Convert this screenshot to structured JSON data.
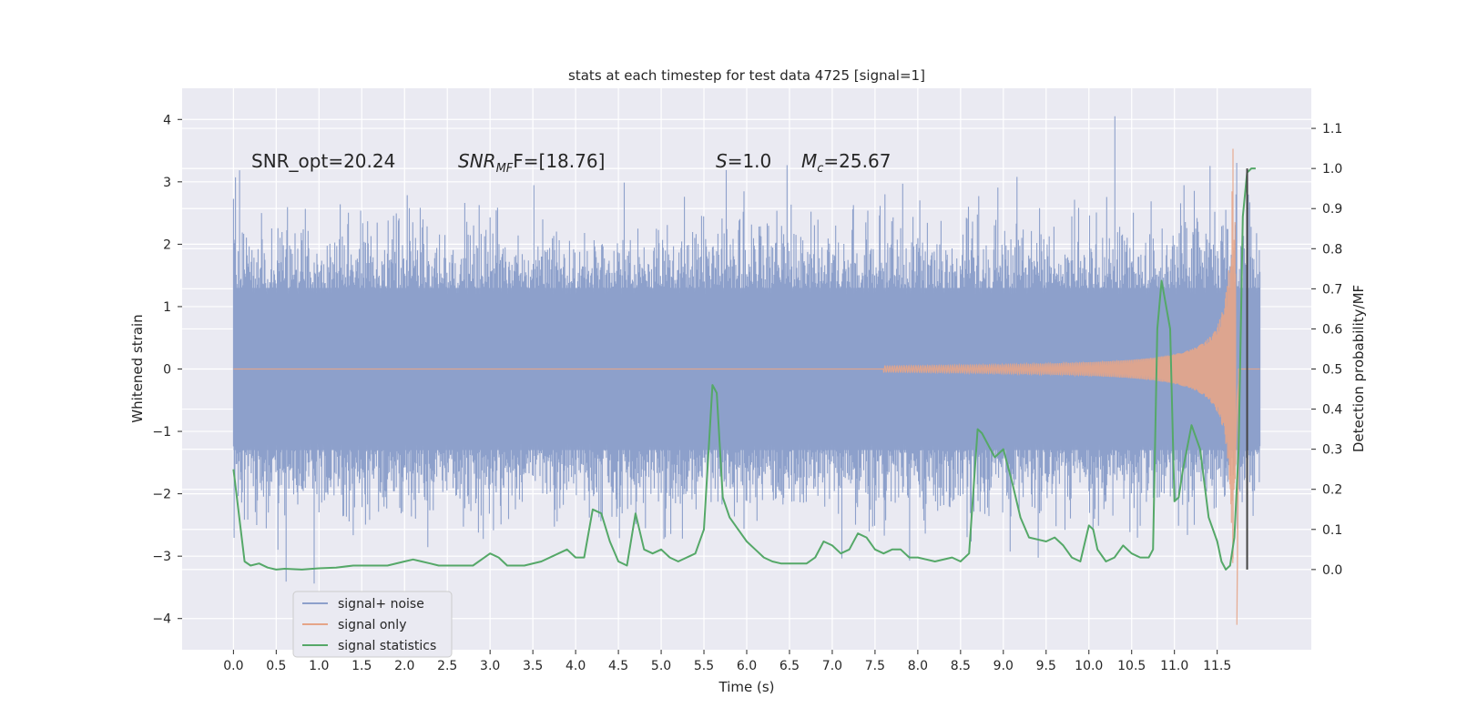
{
  "chart_data": {
    "type": "line",
    "title": "stats at each timestep for test data 4725 [signal=1]",
    "xlabel": "Time (s)",
    "ylabel": "Whitened strain",
    "y2label": "Detection probability/MF",
    "xlim": [
      -0.6,
      12.6
    ],
    "ylim": [
      -4.5,
      4.5
    ],
    "y2lim": [
      -0.2,
      1.2
    ],
    "grid": true,
    "legend_position": "lower-left",
    "x_ticks": [
      "0.0",
      "0.5",
      "1.0",
      "1.5",
      "2.0",
      "2.5",
      "3.0",
      "3.5",
      "4.0",
      "4.5",
      "5.0",
      "5.5",
      "6.0",
      "6.5",
      "7.0",
      "7.5",
      "8.0",
      "8.5",
      "9.0",
      "9.5",
      "10.0",
      "10.5",
      "11.0",
      "11.5"
    ],
    "y_ticks": [
      "4",
      "3",
      "2",
      "1",
      "0",
      "−1",
      "−2",
      "−3",
      "−4"
    ],
    "y2_ticks": [
      "1.1",
      "1.0",
      "0.9",
      "0.8",
      "0.7",
      "0.6",
      "0.5",
      "0.4",
      "0.3",
      "0.2",
      "0.1",
      "0.0"
    ],
    "annotations": {
      "snr_opt": "SNR_opt=20.24",
      "snr_mf_main": "SNR",
      "snr_mf_sub": "MF",
      "snr_mf_rest": "F=[18.76]",
      "s_italic": "S",
      "s_rest": "=1.0",
      "mc_main": "M",
      "mc_sub": "c",
      "mc_rest": "=25.67"
    },
    "series": [
      {
        "name": "signal+ noise",
        "color": "#8da0cb",
        "description_axis": "left",
        "envelope": {
          "typical_amplitude": 1.3,
          "peak_max": 4.05,
          "peak_min": -3.95
        }
      },
      {
        "name": "signal only",
        "color": "#e5a588",
        "description_axis": "left",
        "chirp": {
          "start_time": 7.6,
          "merger_time": 11.7,
          "peak_amplitude": 4.0,
          "min_amplitude": -4.1
        }
      },
      {
        "name": "signal statistics",
        "color": "#55a868",
        "description_axis": "right",
        "x": [
          0.0,
          0.13,
          0.2,
          0.3,
          0.4,
          0.5,
          0.6,
          0.8,
          1.0,
          1.2,
          1.4,
          1.6,
          1.8,
          2.0,
          2.1,
          2.2,
          2.3,
          2.4,
          2.6,
          2.8,
          3.0,
          3.1,
          3.2,
          3.4,
          3.6,
          3.8,
          3.9,
          4.0,
          4.1,
          4.2,
          4.3,
          4.4,
          4.5,
          4.6,
          4.7,
          4.8,
          4.9,
          5.0,
          5.1,
          5.2,
          5.4,
          5.5,
          5.6,
          5.65,
          5.72,
          5.8,
          5.9,
          6.0,
          6.1,
          6.2,
          6.3,
          6.4,
          6.5,
          6.6,
          6.7,
          6.8,
          6.9,
          7.0,
          7.1,
          7.2,
          7.3,
          7.4,
          7.5,
          7.6,
          7.7,
          7.8,
          7.9,
          8.0,
          8.2,
          8.4,
          8.5,
          8.6,
          8.7,
          8.75,
          8.9,
          9.0,
          9.1,
          9.2,
          9.3,
          9.5,
          9.6,
          9.7,
          9.8,
          9.9,
          10.0,
          10.05,
          10.1,
          10.2,
          10.3,
          10.4,
          10.5,
          10.6,
          10.7,
          10.75,
          10.8,
          10.85,
          10.95,
          11.0,
          11.05,
          11.1,
          11.2,
          11.3,
          11.4,
          11.5,
          11.55,
          11.6,
          11.65,
          11.7,
          11.75,
          11.8,
          11.85,
          11.9,
          11.95
        ],
        "y": [
          0.25,
          0.02,
          0.01,
          0.015,
          0.005,
          0.0,
          0.002,
          0.0,
          0.003,
          0.005,
          0.01,
          0.01,
          0.01,
          0.02,
          0.025,
          0.02,
          0.015,
          0.01,
          0.01,
          0.01,
          0.04,
          0.03,
          0.01,
          0.01,
          0.02,
          0.04,
          0.05,
          0.03,
          0.03,
          0.15,
          0.14,
          0.07,
          0.02,
          0.01,
          0.14,
          0.05,
          0.04,
          0.05,
          0.03,
          0.02,
          0.04,
          0.1,
          0.46,
          0.44,
          0.18,
          0.13,
          0.1,
          0.07,
          0.05,
          0.03,
          0.02,
          0.015,
          0.015,
          0.015,
          0.015,
          0.03,
          0.07,
          0.06,
          0.04,
          0.05,
          0.09,
          0.08,
          0.05,
          0.04,
          0.05,
          0.05,
          0.03,
          0.03,
          0.02,
          0.03,
          0.02,
          0.04,
          0.35,
          0.34,
          0.28,
          0.3,
          0.22,
          0.13,
          0.08,
          0.07,
          0.08,
          0.06,
          0.03,
          0.02,
          0.11,
          0.1,
          0.05,
          0.02,
          0.03,
          0.06,
          0.04,
          0.03,
          0.03,
          0.05,
          0.6,
          0.72,
          0.6,
          0.17,
          0.18,
          0.25,
          0.36,
          0.3,
          0.13,
          0.07,
          0.02,
          0.0,
          0.01,
          0.08,
          0.3,
          0.88,
          0.99,
          1.0,
          1.0
        ]
      }
    ],
    "vertical_marker": {
      "x": 11.85,
      "color": "#444444"
    }
  }
}
